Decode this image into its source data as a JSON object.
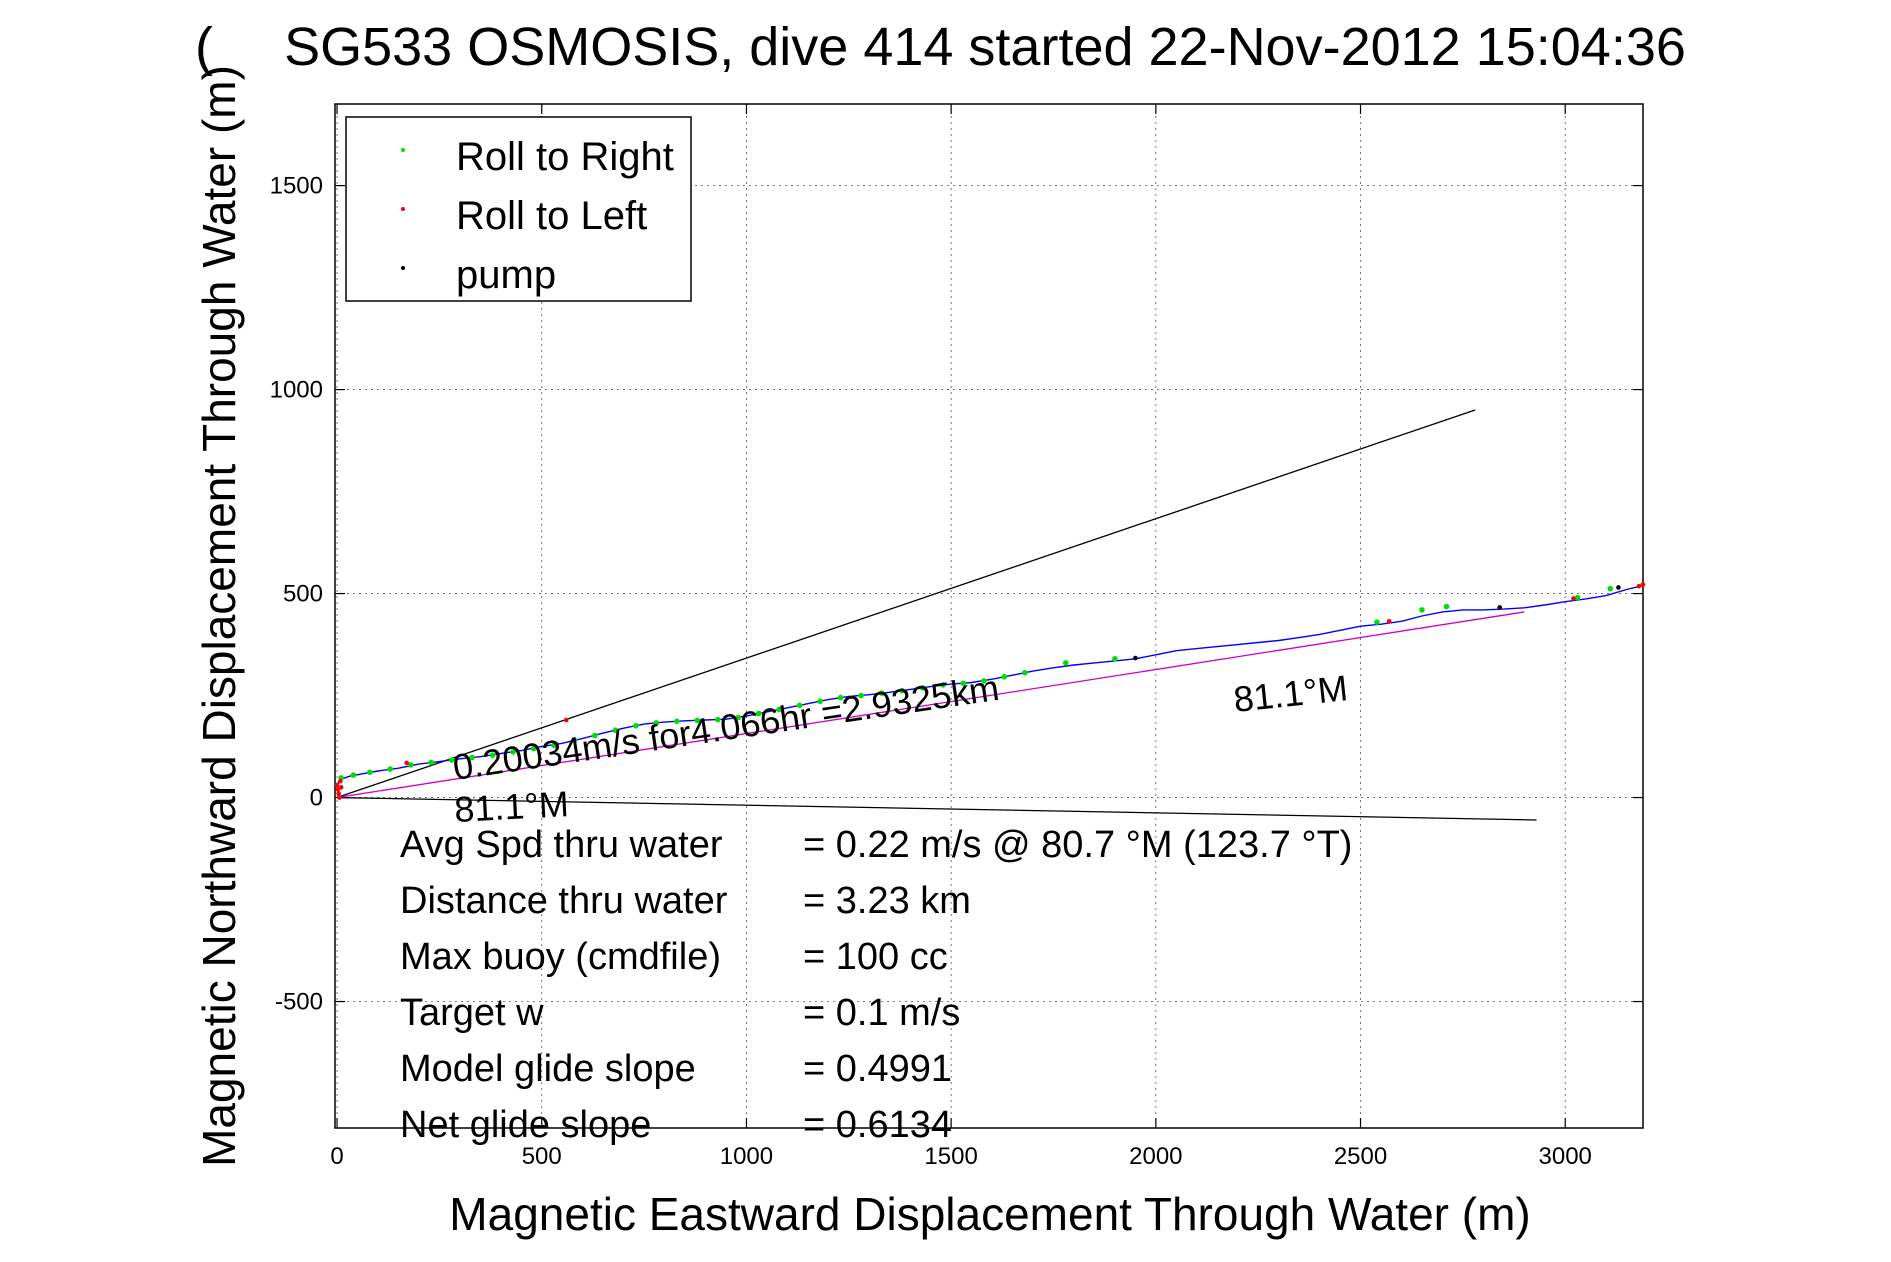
{
  "chart_data": {
    "type": "line",
    "title": "SG533 OSMOSIS, dive 414 started 22-Nov-2012 15:04:36",
    "title_overlap_glyph": "(",
    "xlabel": "Magnetic Eastward Displacement Through Water (m)",
    "ylabel": "Magnetic Northward Displacement Through Water (m)",
    "xlim": [
      -5,
      3190
    ],
    "ylim": [
      -810,
      1700
    ],
    "x_ticks": [
      0,
      500,
      1000,
      1500,
      2000,
      2500,
      3000
    ],
    "y_ticks": [
      -500,
      0,
      500,
      1000,
      1500
    ],
    "grid": true,
    "legend_position": "top-left",
    "legend": [
      {
        "label": "Roll to Right",
        "color": "#00dd00"
      },
      {
        "label": "Roll to Left",
        "color": "#ff0000"
      },
      {
        "label": "pump",
        "color": "#000000"
      }
    ],
    "series": [
      {
        "style": "track",
        "color": "#0000ff",
        "x": [
          0,
          10,
          30,
          60,
          100,
          150,
          200,
          250,
          300,
          350,
          400,
          450,
          500,
          550,
          600,
          650,
          700,
          750,
          800,
          850,
          900,
          950,
          1000,
          1050,
          1100,
          1150,
          1200,
          1250,
          1300,
          1350,
          1400,
          1450,
          1500,
          1550,
          1600,
          1650,
          1700,
          1750,
          1800,
          1850,
          1900,
          1950,
          2000,
          2050,
          2100,
          2150,
          2200,
          2250,
          2300,
          2350,
          2400,
          2450,
          2500,
          2550,
          2600,
          2650,
          2700,
          2750,
          2800,
          2850,
          2900,
          2950,
          3000,
          3050,
          3100,
          3150,
          3190
        ],
        "y": [
          30,
          45,
          52,
          58,
          65,
          72,
          82,
          88,
          95,
          100,
          108,
          115,
          125,
          133,
          145,
          158,
          170,
          180,
          185,
          188,
          190,
          192,
          200,
          210,
          220,
          230,
          240,
          248,
          252,
          258,
          265,
          272,
          278,
          282,
          290,
          300,
          310,
          318,
          325,
          330,
          335,
          340,
          350,
          360,
          365,
          370,
          375,
          380,
          385,
          392,
          400,
          410,
          420,
          425,
          432,
          445,
          455,
          460,
          460,
          462,
          465,
          472,
          480,
          487,
          495,
          510,
          520
        ]
      },
      {
        "style": "roll_right",
        "color": "#00dd00",
        "x": [
          10,
          40,
          80,
          130,
          180,
          230,
          280,
          330,
          380,
          430,
          480,
          530,
          580,
          630,
          680,
          730,
          780,
          830,
          880,
          930,
          980,
          1030,
          1080,
          1130,
          1180,
          1230,
          1280,
          1330,
          1380,
          1430,
          1480,
          1530,
          1580,
          1630,
          1680,
          1780,
          1900,
          2540,
          2650,
          2710,
          3030,
          3110
        ],
        "y": [
          48,
          55,
          62,
          70,
          80,
          86,
          92,
          98,
          104,
          112,
          120,
          128,
          140,
          152,
          165,
          176,
          183,
          187,
          189,
          191,
          196,
          206,
          216,
          226,
          236,
          245,
          250,
          256,
          262,
          269,
          276,
          280,
          286,
          296,
          306,
          330,
          340,
          430,
          460,
          468,
          490,
          512
        ]
      },
      {
        "style": "roll_left",
        "color": "#ff0000",
        "x": [
          0,
          2,
          4,
          6,
          8,
          10,
          170,
          560,
          2570,
          2840,
          3020,
          3180,
          3190
        ],
        "y": [
          30,
          20,
          10,
          0,
          40,
          25,
          85,
          190,
          432,
          465,
          488,
          518,
          522
        ]
      },
      {
        "style": "pump",
        "color": "#000000",
        "x": [
          1950,
          2840,
          3130
        ],
        "y": [
          342,
          466,
          515
        ]
      }
    ],
    "reference_lines": [
      {
        "color": "#000000",
        "from": [
          0,
          0
        ],
        "to": [
          2780,
          950
        ]
      },
      {
        "color": "#000000",
        "from": [
          0,
          0
        ],
        "to": [
          2930,
          -55
        ]
      },
      {
        "color": "#cc00cc",
        "from": [
          0,
          0
        ],
        "to": [
          2900,
          455
        ]
      }
    ],
    "annotations": {
      "speed_text": "0.20034m/s for4.066hr =2.9325km",
      "heading_near": "81.1°M",
      "heading_far": "81.1°M"
    },
    "stats": [
      {
        "label": "Avg Spd thru water",
        "value": "=  0.22 m/s @  80.7 °M (123.7 °T)"
      },
      {
        "label": "Distance thru water",
        "value": "=  3.23 km"
      },
      {
        "label": "Max buoy (cmdfile)",
        "value": "= 100 cc"
      },
      {
        "label": "Target w",
        "value": "= 0.1 m/s"
      },
      {
        "label": "Model glide slope",
        "value": "= 0.4991"
      },
      {
        "label": "Net glide slope",
        "value": "= 0.6134"
      }
    ]
  }
}
